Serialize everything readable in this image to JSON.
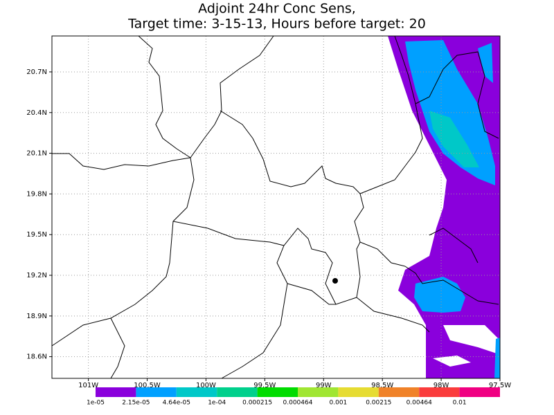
{
  "map": {
    "title": [
      "Adjoint 24hr Conc Sens,",
      "Target time: 3-15-13, Hours before target: 20"
    ],
    "xlim": [
      -101.31,
      -97.5
    ],
    "ylim": [
      18.44,
      20.965
    ],
    "lat_ticks": [
      {
        "value": 20.7,
        "label": "20.7N"
      },
      {
        "value": 20.4,
        "label": "20.4N"
      },
      {
        "value": 20.1,
        "label": "20.1N"
      },
      {
        "value": 19.8,
        "label": "19.8N"
      },
      {
        "value": 19.5,
        "label": "19.5N"
      },
      {
        "value": 19.2,
        "label": "19.2N"
      },
      {
        "value": 18.9,
        "label": "18.9N"
      },
      {
        "value": 18.6,
        "label": "18.6N"
      }
    ],
    "lon_ticks": [
      {
        "value": -101,
        "label": "101W"
      },
      {
        "value": -100.5,
        "label": "100.5W"
      },
      {
        "value": -100,
        "label": "100W"
      },
      {
        "value": -99.5,
        "label": "99.5W"
      },
      {
        "value": -99,
        "label": "99W"
      },
      {
        "value": -98.5,
        "label": "98.5W"
      },
      {
        "value": -98,
        "label": "98W"
      },
      {
        "value": -97.5,
        "label": "97.5W"
      }
    ],
    "grid": true,
    "colorbar": {
      "colors": [
        "#8a00dc",
        "#00a0ff",
        "#00c8c8",
        "#00d08c",
        "#00dc00",
        "#a0e632",
        "#e6dc32",
        "#f08228",
        "#fa3c3c",
        "#f00082"
      ],
      "labels": [
        "1e-05",
        "2.15e-05",
        "4.64e-05",
        "1e-04",
        "0.000215",
        "0.000464",
        "0.001",
        "0.00215",
        "0.00464",
        "0.01"
      ]
    }
  }
}
